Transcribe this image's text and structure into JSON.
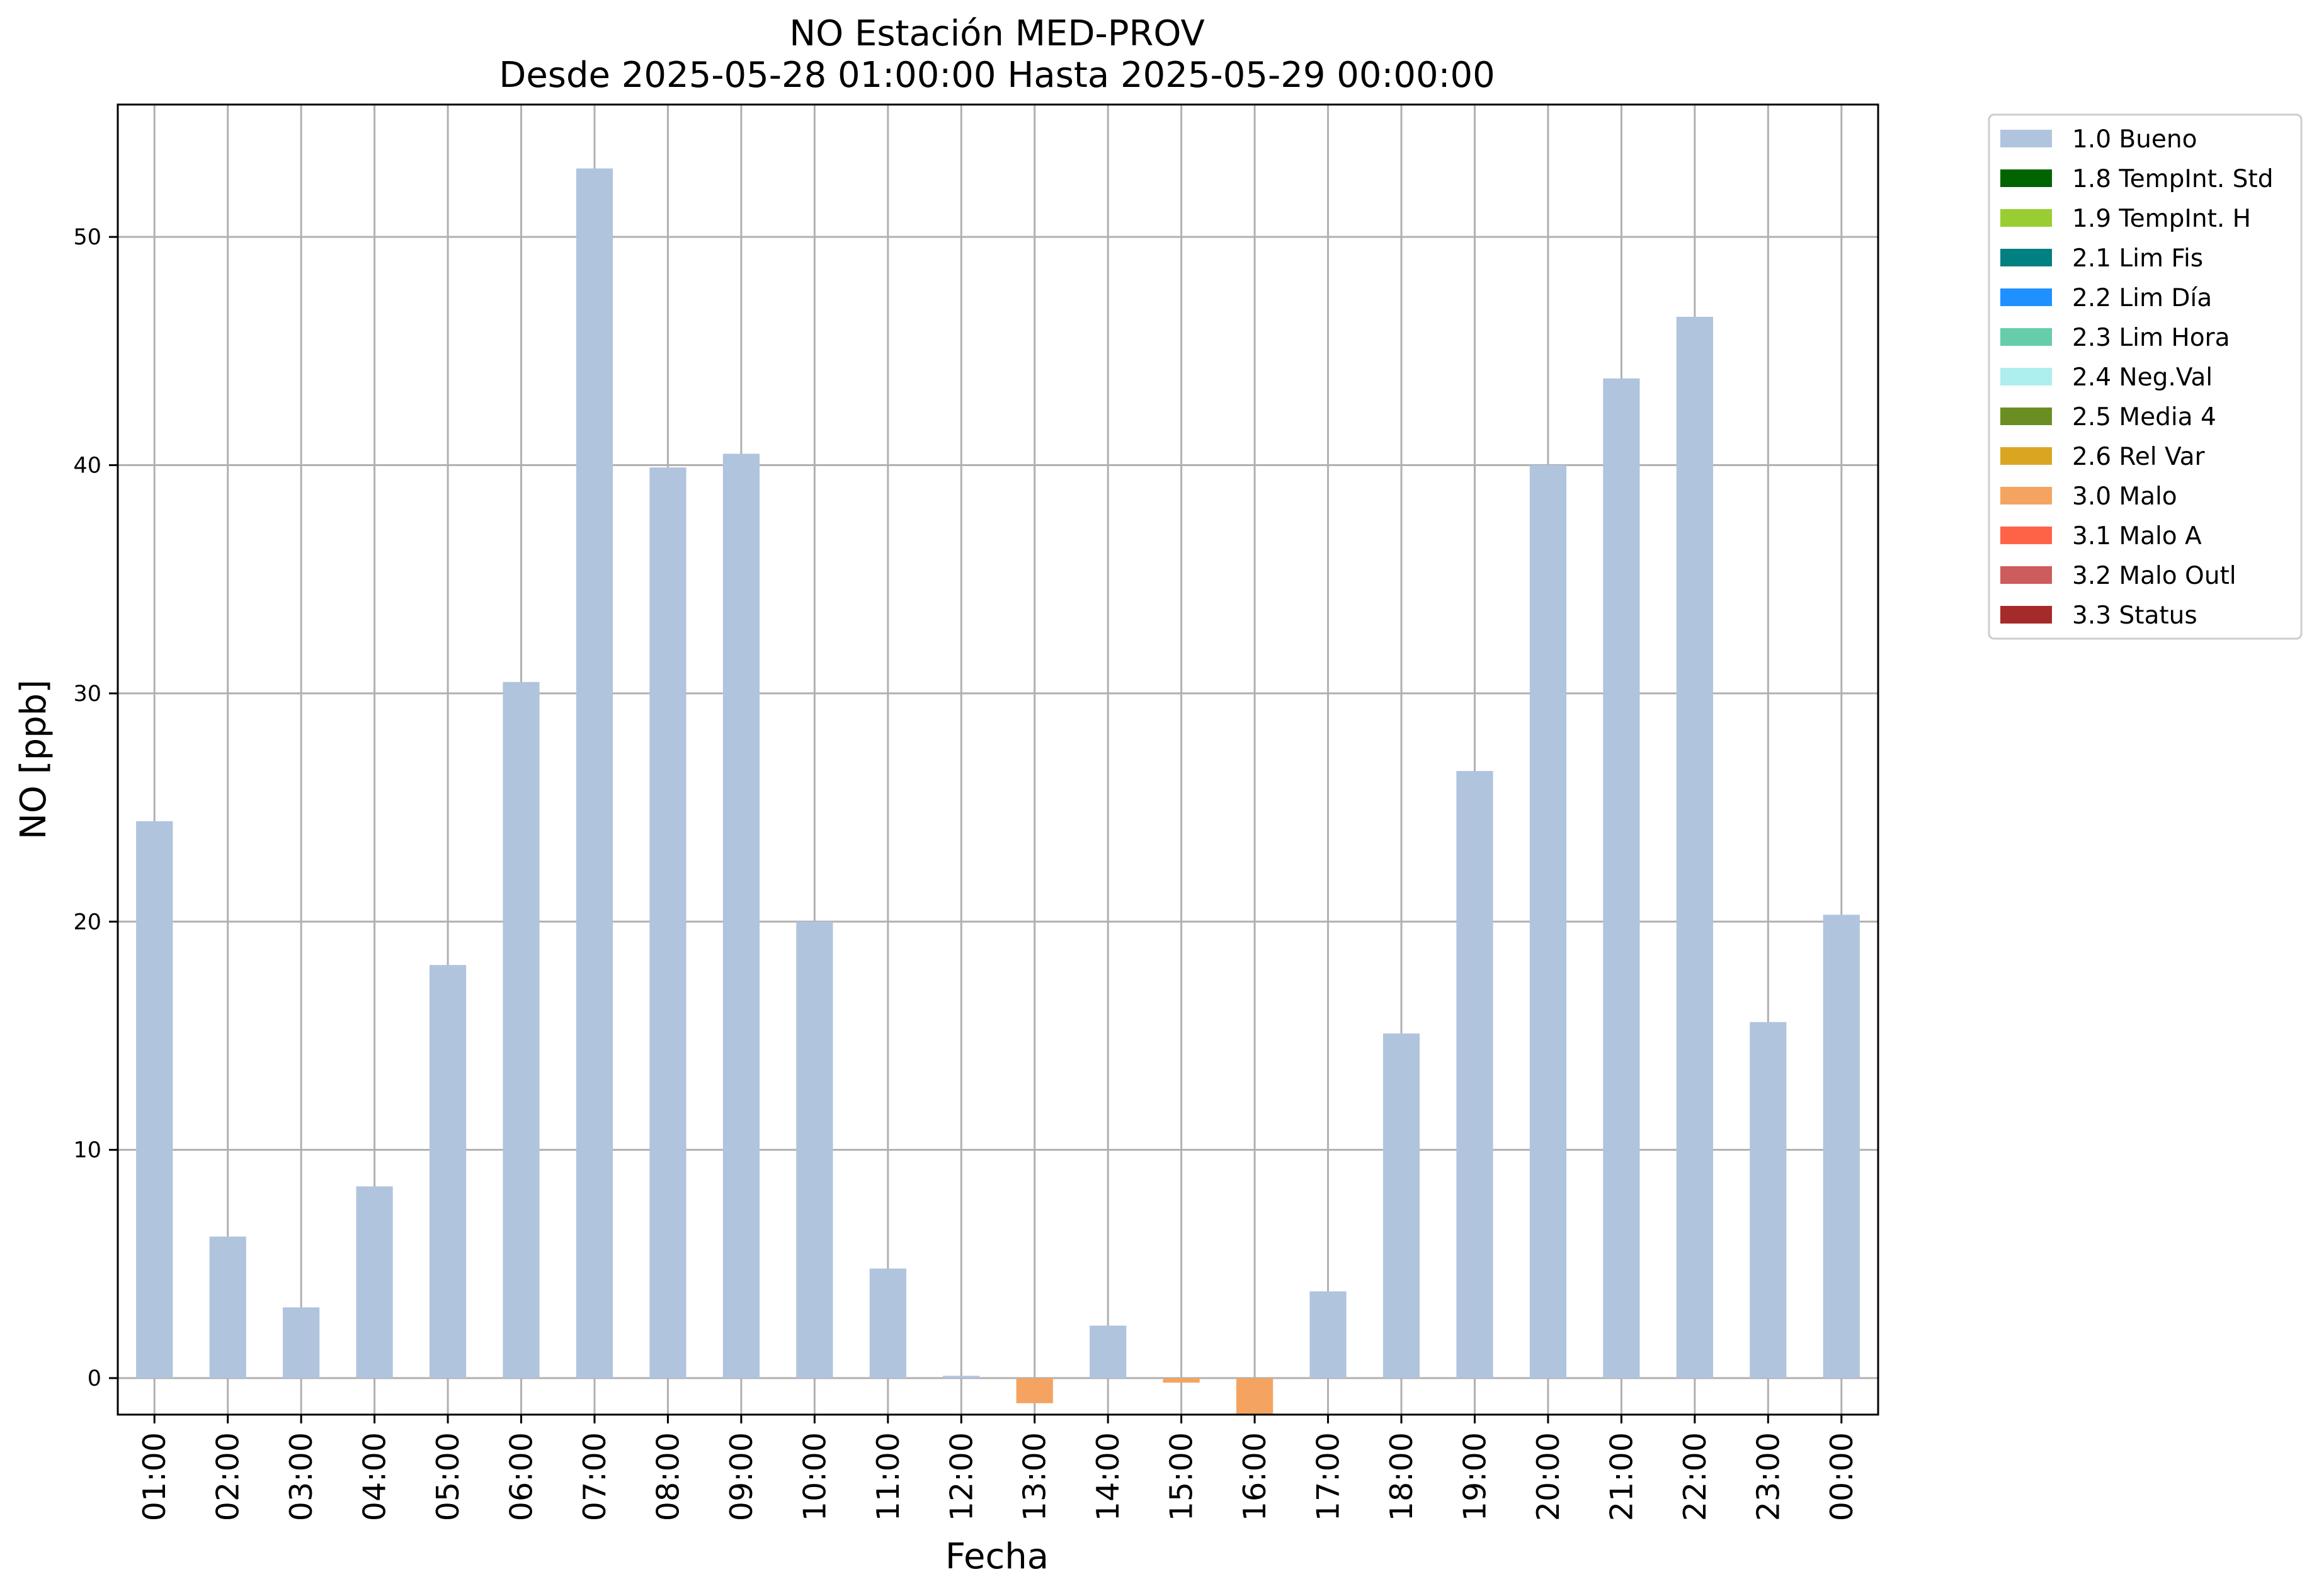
{
  "chart_data": {
    "type": "bar",
    "title": "NO Estación MED-PROV",
    "subtitle": "Desde 2025-05-28 01:00:00 Hasta 2025-05-29 00:00:00",
    "xlabel": "Fecha",
    "ylabel": "NO [ppb]",
    "ylim": [
      -1.6,
      55.8
    ],
    "yticks": [
      0,
      10,
      20,
      30,
      40,
      50
    ],
    "grid": true,
    "legend_position": "outside-top-right",
    "categories": [
      "01:00",
      "02:00",
      "03:00",
      "04:00",
      "05:00",
      "06:00",
      "07:00",
      "08:00",
      "09:00",
      "10:00",
      "11:00",
      "12:00",
      "13:00",
      "14:00",
      "15:00",
      "16:00",
      "17:00",
      "18:00",
      "19:00",
      "20:00",
      "21:00",
      "22:00",
      "23:00",
      "00:00"
    ],
    "values": [
      24.4,
      6.2,
      3.1,
      8.4,
      18.1,
      30.5,
      53.0,
      39.9,
      40.5,
      20.0,
      4.8,
      0.1,
      -1.1,
      2.3,
      -0.2,
      -1.6,
      3.8,
      15.1,
      26.6,
      40.0,
      43.8,
      46.5,
      15.6,
      20.3
    ],
    "flags": [
      "1.0 Bueno",
      "1.0 Bueno",
      "1.0 Bueno",
      "1.0 Bueno",
      "1.0 Bueno",
      "1.0 Bueno",
      "1.0 Bueno",
      "1.0 Bueno",
      "1.0 Bueno",
      "1.0 Bueno",
      "1.0 Bueno",
      "1.0 Bueno",
      "3.0 Malo",
      "1.0 Bueno",
      "3.0 Malo",
      "3.0 Malo",
      "1.0 Bueno",
      "1.0 Bueno",
      "1.0 Bueno",
      "1.0 Bueno",
      "1.0 Bueno",
      "1.0 Bueno",
      "1.0 Bueno",
      "1.0 Bueno"
    ],
    "legend": [
      {
        "label": "1.0 Bueno",
        "color": "#b0c4de"
      },
      {
        "label": "1.8 TempInt. Std",
        "color": "#006400"
      },
      {
        "label": "1.9 TempInt. H",
        "color": "#9acd32"
      },
      {
        "label": "2.1 Lim Fis",
        "color": "#008080"
      },
      {
        "label": "2.2 Lim Día",
        "color": "#1e90ff"
      },
      {
        "label": "2.3 Lim Hora",
        "color": "#66cdaa"
      },
      {
        "label": "2.4 Neg.Val",
        "color": "#afeeee"
      },
      {
        "label": "2.5 Media 4",
        "color": "#6b8e23"
      },
      {
        "label": "2.6 Rel Var",
        "color": "#daa520"
      },
      {
        "label": "3.0 Malo",
        "color": "#f4a460"
      },
      {
        "label": "3.1 Malo A",
        "color": "#ff6347"
      },
      {
        "label": "3.2 Malo Outl",
        "color": "#cd5c5c"
      },
      {
        "label": "3.3 Status",
        "color": "#a52a2a"
      }
    ]
  }
}
